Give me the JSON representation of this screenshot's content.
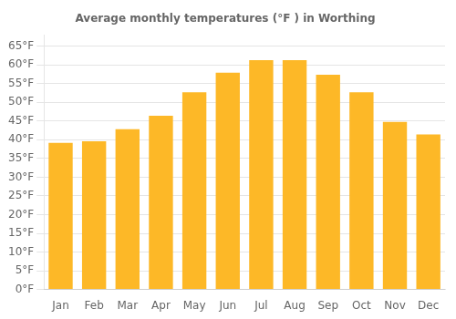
{
  "chart_data": {
    "type": "bar",
    "title": "Average monthly temperatures (°F ) in Worthing",
    "categories": [
      "Jan",
      "Feb",
      "Mar",
      "Apr",
      "May",
      "Jun",
      "Jul",
      "Aug",
      "Sep",
      "Oct",
      "Nov",
      "Dec"
    ],
    "values": [
      39.2,
      39.6,
      42.8,
      46.4,
      52.7,
      57.9,
      61.3,
      61.3,
      57.4,
      52.7,
      44.8,
      41.4
    ],
    "color": "#FDB827",
    "ylim": [
      0,
      68
    ],
    "yticks": [
      {
        "value": 0,
        "label": "0°F"
      },
      {
        "value": 5,
        "label": "5°F"
      },
      {
        "value": 10,
        "label": "10°F"
      },
      {
        "value": 15,
        "label": "15°F"
      },
      {
        "value": 20,
        "label": "20°F"
      },
      {
        "value": 25,
        "label": "25°F"
      },
      {
        "value": 30,
        "label": "30°F"
      },
      {
        "value": 35,
        "label": "35°F"
      },
      {
        "value": 40,
        "label": "40°F"
      },
      {
        "value": 45,
        "label": "45°F"
      },
      {
        "value": 50,
        "label": "50°F"
      },
      {
        "value": 55,
        "label": "55°F"
      },
      {
        "value": 60,
        "label": "60°F"
      },
      {
        "value": 65,
        "label": "65°F"
      }
    ],
    "grid": true
  }
}
